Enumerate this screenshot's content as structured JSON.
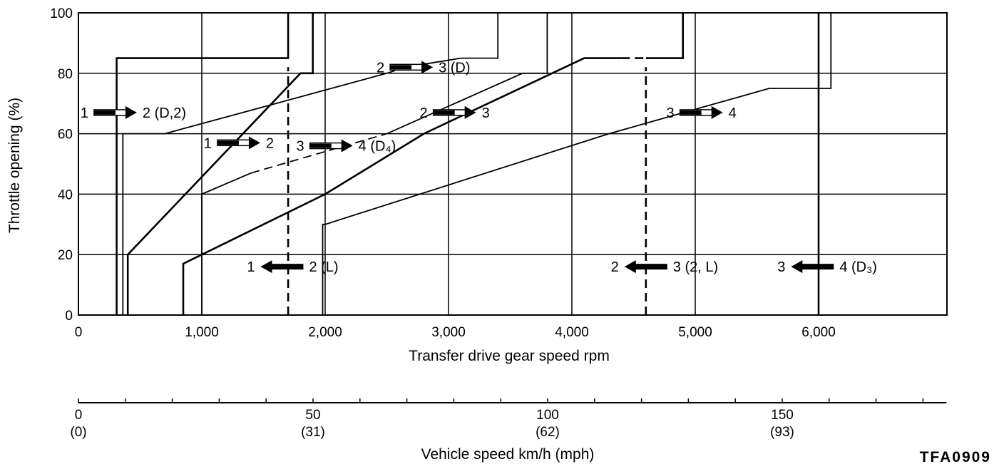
{
  "chart_data": {
    "type": "line",
    "title": "",
    "xlabel": "Transfer drive gear speed  rpm",
    "ylabel": "Throttle opening (%)",
    "xlim": [
      0,
      7000
    ],
    "ylim": [
      0,
      100
    ],
    "x_ticks": [
      {
        "value": 0,
        "label": "0"
      },
      {
        "value": 1000,
        "label": "1,000"
      },
      {
        "value": 2000,
        "label": "2,000"
      },
      {
        "value": 3000,
        "label": "3,000"
      },
      {
        "value": 4000,
        "label": "4,000"
      },
      {
        "value": 5000,
        "label": "5,000"
      },
      {
        "value": 6000,
        "label": "6,000"
      }
    ],
    "y_ticks": [
      {
        "value": 0,
        "label": "0"
      },
      {
        "value": 20,
        "label": "20"
      },
      {
        "value": 40,
        "label": "40"
      },
      {
        "value": 60,
        "label": "60"
      },
      {
        "value": 80,
        "label": "80"
      },
      {
        "value": 100,
        "label": "100"
      }
    ],
    "grid": true,
    "series": [
      {
        "kind": "upshift",
        "style": "solid",
        "points": [
          [
            360,
            0
          ],
          [
            360,
            60
          ],
          [
            700,
            60
          ],
          [
            2500,
            80
          ]
        ]
      },
      {
        "kind": "upshift",
        "style": "dashed",
        "points": [
          [
            2500,
            80
          ],
          [
            2650,
            82
          ]
        ]
      },
      {
        "kind": "upshift",
        "style": "solid",
        "points": [
          [
            2650,
            82
          ],
          [
            3100,
            85
          ],
          [
            3400,
            85
          ],
          [
            3400,
            100
          ]
        ]
      },
      {
        "kind": "downshift",
        "style": "solid",
        "points": [
          [
            310,
            0
          ],
          [
            310,
            85
          ],
          [
            1700,
            85
          ],
          [
            1700,
            100
          ]
        ]
      },
      {
        "kind": "downshift",
        "style": "solid",
        "points": [
          [
            400,
            0
          ],
          [
            400,
            20
          ],
          [
            1800,
            80
          ],
          [
            1900,
            80
          ],
          [
            1900,
            100
          ]
        ]
      },
      {
        "kind": "upshift",
        "style": "solid",
        "points": [
          [
            1000,
            0
          ],
          [
            1000,
            40
          ],
          [
            1400,
            47
          ]
        ]
      },
      {
        "kind": "upshift",
        "style": "dashed",
        "points": [
          [
            1400,
            47
          ],
          [
            2500,
            60
          ]
        ]
      },
      {
        "kind": "upshift",
        "style": "solid",
        "points": [
          [
            2500,
            60
          ],
          [
            3600,
            80
          ],
          [
            3800,
            80
          ],
          [
            3800,
            100
          ]
        ]
      },
      {
        "kind": "downshift",
        "style": "solid",
        "points": [
          [
            850,
            0
          ],
          [
            850,
            17
          ],
          [
            2000,
            40
          ],
          [
            2800,
            60
          ],
          [
            4100,
            85
          ],
          [
            4400,
            85
          ]
        ]
      },
      {
        "kind": "downshift",
        "style": "dashed",
        "points": [
          [
            4400,
            85
          ],
          [
            4600,
            85
          ]
        ]
      },
      {
        "kind": "downshift",
        "style": "solid",
        "points": [
          [
            4600,
            85
          ],
          [
            4900,
            85
          ],
          [
            4900,
            100
          ]
        ]
      },
      {
        "kind": "upshift",
        "style": "solid",
        "points": [
          [
            1980,
            0
          ],
          [
            1980,
            30
          ],
          [
            2000,
            30
          ],
          [
            4300,
            60
          ],
          [
            5600,
            75
          ],
          [
            6100,
            75
          ],
          [
            6100,
            100
          ]
        ]
      },
      {
        "kind": "downshift",
        "style": "solid",
        "points": [
          [
            6000,
            0
          ],
          [
            6000,
            100
          ]
        ]
      },
      {
        "kind": "downshift",
        "style": "dashed",
        "points": [
          [
            1700,
            0
          ],
          [
            1700,
            82
          ]
        ]
      },
      {
        "kind": "downshift",
        "style": "dashed",
        "points": [
          [
            4600,
            0
          ],
          [
            4600,
            82
          ]
        ]
      }
    ],
    "annotations": [
      {
        "from": "1",
        "to": "2 (D,2)",
        "direction": "up",
        "x": 300,
        "y": 67
      },
      {
        "from": "1",
        "to": "2",
        "direction": "up",
        "x": 1300,
        "y": 57
      },
      {
        "from": "2",
        "to": "3 (D)",
        "direction": "up",
        "x": 2700,
        "y": 82
      },
      {
        "from": "2",
        "to": "3",
        "direction": "up",
        "x": 3050,
        "y": 67
      },
      {
        "from": "3",
        "to": "4 (D₄)",
        "direction": "up",
        "x": 2050,
        "y": 56
      },
      {
        "from": "3",
        "to": "4",
        "direction": "up",
        "x": 5050,
        "y": 67
      },
      {
        "from": "1",
        "to": "2 (L)",
        "direction": "down",
        "x": 1650,
        "y": 16
      },
      {
        "from": "2",
        "to": "3 (2, L)",
        "direction": "down",
        "x": 4600,
        "y": 16
      },
      {
        "from": "3",
        "to": "4 (D₃)",
        "direction": "down",
        "x": 5950,
        "y": 16
      }
    ],
    "secondary_axis": {
      "label": "Vehicle speed km/h (mph)",
      "ticks": [
        {
          "value": 0,
          "label": "0",
          "sublabel": "(0)"
        },
        {
          "value": 50,
          "label": "50",
          "sublabel": "(31)"
        },
        {
          "value": 100,
          "label": "100",
          "sublabel": "(62)"
        },
        {
          "value": 150,
          "label": "150",
          "sublabel": "(93)"
        }
      ],
      "minor_step": 10,
      "max": 185
    }
  },
  "figure_code": "TFA0909"
}
